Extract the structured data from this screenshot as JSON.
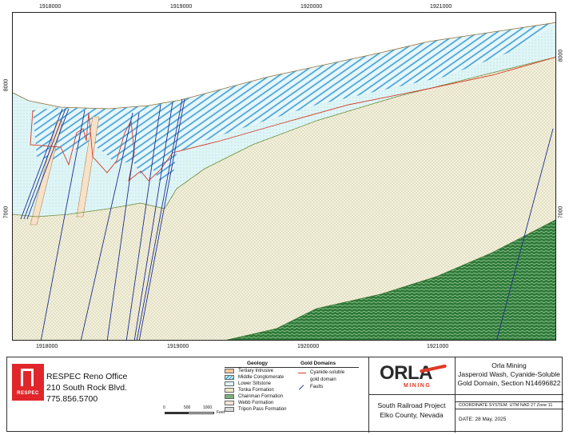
{
  "map": {
    "x_ticks": [
      "1918000",
      "1919000",
      "1920000",
      "1921000"
    ],
    "y_ticks": [
      "8000",
      "7000"
    ],
    "colors": {
      "tertiary_intrusive": "#f5c7a0",
      "middle_conglomerate": "#4aa7d6",
      "lower_siltstone": "#dff5f6",
      "tonka_formation": "#ebe8c8",
      "chainman_formation": "#7ab27a",
      "webb_formation": "#f7e4d7",
      "tripon_pass": "#d9d9d9",
      "cyanide_gold": "#d43a2a",
      "faults": "#1e2f8c"
    }
  },
  "legend": {
    "geology_title": "Geology",
    "geology_items": [
      {
        "label": "Tertiary Intrusive",
        "color": "#f5c7a0"
      },
      {
        "label": "Middle Conglomerate",
        "color": "#4aa7d6"
      },
      {
        "label": "Lower Siltstone",
        "color": "#dff5f6"
      },
      {
        "label": "Tonka Formation",
        "color": "#ebe8c8"
      },
      {
        "label": "Chainman Formation",
        "color": "#7ab27a"
      },
      {
        "label": "Webb Formation",
        "color": "#f7e4d7"
      },
      {
        "label": "Tripon Pass Formation",
        "color": "#d9d9d9"
      }
    ],
    "gold_title": "Gold Domains",
    "gold_items": [
      {
        "label": "Cyanide-soluble",
        "label2": "gold domain",
        "color": "#d43a2a"
      },
      {
        "label": "Faults",
        "color": "#1e2f8c"
      }
    ]
  },
  "scale_bar": {
    "labels": [
      "0",
      "500",
      "1000"
    ],
    "unit": "Feet"
  },
  "respec": {
    "logo_letters": "RESPEC",
    "office": "RESPEC Reno Office",
    "address": "210 South Rock Blvd.",
    "phone": "775.856.5700"
  },
  "title_block": {
    "logo_text": "ORLA",
    "logo_sub": "MINING",
    "company": "Orla Mining",
    "title_line1": "Jasperoid Wash, Cyanide-Soluble",
    "title_line2": "Gold Domain, Section N14696822",
    "project_line1": "South Railroad Project",
    "project_line2": "Elko County, Nevada",
    "coord_system": "COORDINATE SYSTEM: UTM NAD 27 Zone 11",
    "date": "DATE:  28 May, 2025"
  }
}
